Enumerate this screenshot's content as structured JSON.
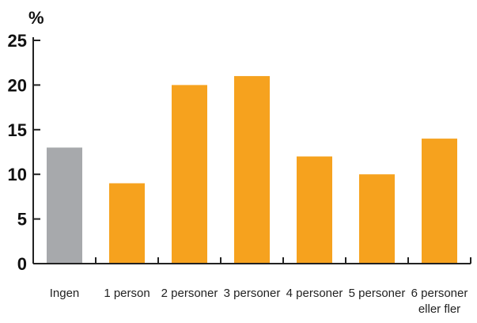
{
  "chart_data": {
    "type": "bar",
    "ylabel": "%",
    "categories": [
      "Ingen",
      "1 person",
      "2 personer",
      "3 personer",
      "4 personer",
      "5 personer",
      "6 personer eller fler"
    ],
    "category_lines": [
      [
        "Ingen"
      ],
      [
        "1 person"
      ],
      [
        "2 personer"
      ],
      [
        "3 personer"
      ],
      [
        "4 personer"
      ],
      [
        "5 personer"
      ],
      [
        "6 personer",
        "eller fler"
      ]
    ],
    "values": [
      13,
      9,
      20,
      21,
      12,
      10,
      14
    ],
    "bar_colors": [
      "#A7A9AC",
      "#F6A21E",
      "#F6A21E",
      "#F6A21E",
      "#F6A21E",
      "#F6A21E",
      "#F6A21E"
    ],
    "ylim": [
      0,
      25
    ],
    "yticks": [
      0,
      5,
      10,
      15,
      20,
      25
    ],
    "grid": false,
    "legend": "none"
  }
}
